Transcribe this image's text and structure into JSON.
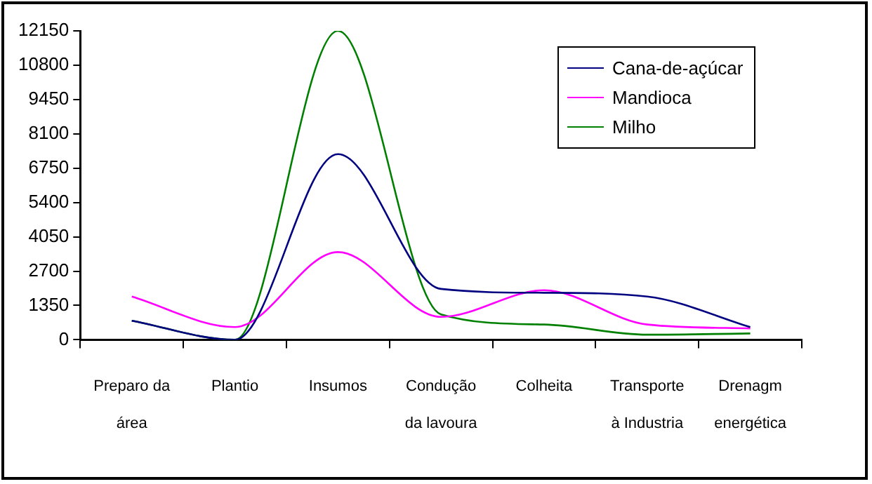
{
  "chart_data": {
    "type": "line",
    "categories": [
      "Preparo da área",
      "Plantio",
      "Insumos",
      "Condução da lavoura",
      "Colheita",
      "Transporte à Industria",
      "Drenagm energética"
    ],
    "series": [
      {
        "name": "Cana-de-açúcar",
        "color": "#000080",
        "values": [
          750,
          0,
          7300,
          2000,
          1850,
          1700,
          500
        ]
      },
      {
        "name": "Mandioca",
        "color": "#ff00ff",
        "values": [
          1700,
          500,
          3450,
          900,
          1950,
          600,
          450
        ]
      },
      {
        "name": "Milho",
        "color": "#008000",
        "values": [
          750,
          0,
          12150,
          1000,
          600,
          200,
          250
        ]
      }
    ],
    "ylim": [
      0,
      12150
    ],
    "yticks": [
      0,
      1350,
      2700,
      4050,
      5400,
      6750,
      8100,
      9450,
      10800,
      12150
    ],
    "grid": false,
    "legend": "top right",
    "marker": "none",
    "line_style": "solid"
  }
}
